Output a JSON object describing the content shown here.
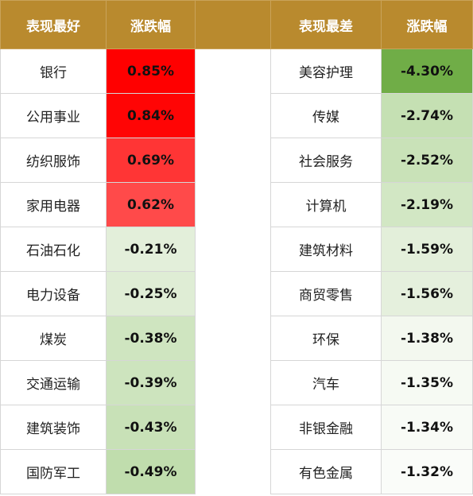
{
  "header": {
    "best_title": "表现最好",
    "best_change": "涨跌幅",
    "worst_title": "表现最差",
    "worst_change": "涨跌幅"
  },
  "rows": [
    {
      "best_name": "银行",
      "best_value": "0.85%",
      "best_color": "#ff0000",
      "worst_name": "美容护理",
      "worst_value": "-4.30%",
      "worst_color": "#70ad47"
    },
    {
      "best_name": "公用事业",
      "best_value": "0.84%",
      "best_color": "#ff0505",
      "worst_name": "传媒",
      "worst_value": "-2.74%",
      "worst_color": "#c5e0b3"
    },
    {
      "best_name": "纺织服饰",
      "best_value": "0.69%",
      "best_color": "#ff3535",
      "worst_name": "社会服务",
      "worst_value": "-2.52%",
      "worst_color": "#c9e2b8"
    },
    {
      "best_name": "家用电器",
      "best_value": "0.62%",
      "best_color": "#ff4a4a",
      "worst_name": "计算机",
      "worst_value": "-2.19%",
      "worst_color": "#d2e7c4"
    },
    {
      "best_name": "石油石化",
      "best_value": "-0.21%",
      "best_color": "#e3efda",
      "worst_name": "建筑材料",
      "worst_value": "-1.59%",
      "worst_color": "#e3efda"
    },
    {
      "best_name": "电力设备",
      "best_value": "-0.25%",
      "best_color": "#dfedd5",
      "worst_name": "商贸零售",
      "worst_value": "-1.56%",
      "worst_color": "#e5f0dd"
    },
    {
      "best_name": "煤炭",
      "best_value": "-0.38%",
      "best_color": "#cfe5c0",
      "worst_name": "环保",
      "worst_value": "-1.38%",
      "worst_color": "#f3f8ef"
    },
    {
      "best_name": "交通运输",
      "best_value": "-0.39%",
      "best_color": "#cde4be",
      "worst_name": "汽车",
      "worst_value": "-1.35%",
      "worst_color": "#f6faf3"
    },
    {
      "best_name": "建筑装饰",
      "best_value": "-0.43%",
      "best_color": "#c8e1b7",
      "worst_name": "非银金融",
      "worst_value": "-1.34%",
      "worst_color": "#f8fbf6"
    },
    {
      "best_name": "国防军工",
      "best_value": "-0.49%",
      "best_color": "#c0ddad",
      "worst_name": "有色金属",
      "worst_value": "-1.32%",
      "worst_color": "#fafcf9"
    }
  ]
}
